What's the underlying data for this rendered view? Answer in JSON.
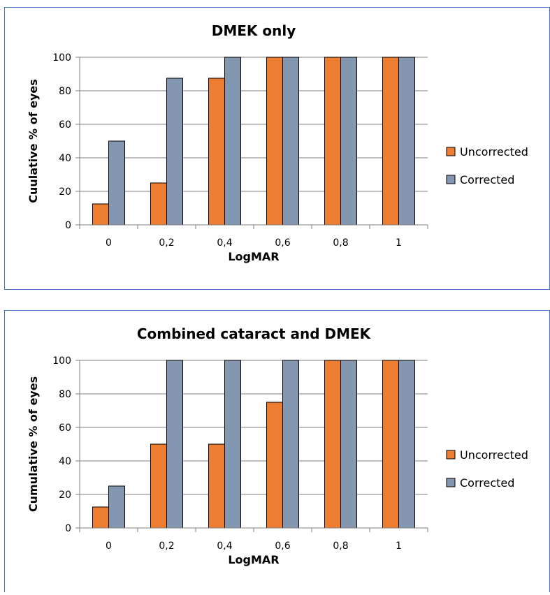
{
  "colors": {
    "uncorrected": "#ed7d31",
    "corrected": "#8497b0",
    "border": "#4472c4",
    "grid": "#7f7f7f"
  },
  "chart_data": [
    {
      "type": "bar",
      "title": "DMEK only",
      "xlabel": "LogMAR",
      "ylabel": "Cuulative % of eyes",
      "categories": [
        "0",
        "0,2",
        "0,4",
        "0,6",
        "0,8",
        "1"
      ],
      "ylim": [
        0,
        100
      ],
      "yticks": [
        "0",
        "20",
        "40",
        "60",
        "80",
        "100"
      ],
      "grid": true,
      "legend_position": "right",
      "series": [
        {
          "name": "Uncorrected",
          "values": [
            12.5,
            25,
            87.5,
            100,
            100,
            100
          ]
        },
        {
          "name": "Corrected",
          "values": [
            50,
            87.5,
            100,
            100,
            100,
            100
          ]
        }
      ]
    },
    {
      "type": "bar",
      "title": "Combined cataract and DMEK",
      "xlabel": "LogMAR",
      "ylabel": "Cumulative % of eyes",
      "categories": [
        "0",
        "0,2",
        "0,4",
        "0,6",
        "0,8",
        "1"
      ],
      "ylim": [
        0,
        100
      ],
      "yticks": [
        "0",
        "20",
        "40",
        "60",
        "80",
        "100"
      ],
      "grid": true,
      "legend_position": "right",
      "series": [
        {
          "name": "Uncorrected",
          "values": [
            12.5,
            50,
            50,
            75,
            100,
            100
          ]
        },
        {
          "name": "Corrected",
          "values": [
            25,
            100,
            100,
            100,
            100,
            100
          ]
        }
      ]
    }
  ]
}
